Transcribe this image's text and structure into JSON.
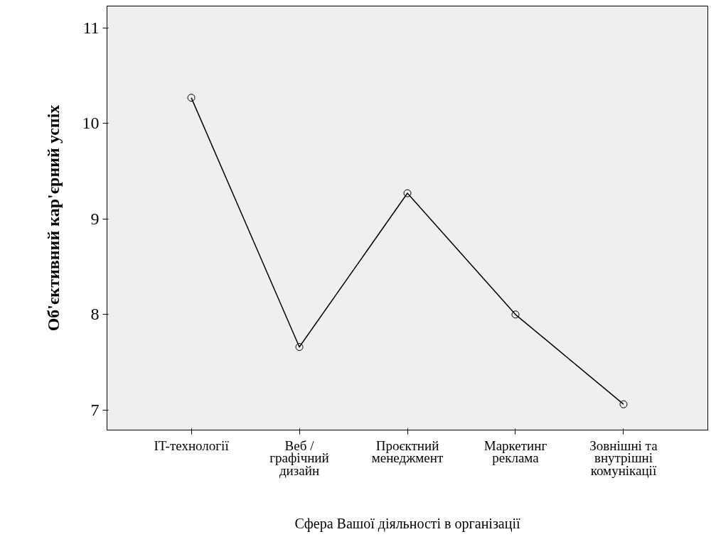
{
  "chart_data": {
    "type": "line",
    "xlabel": "Сфера Вашої діяльності в організації",
    "ylabel": "Об'єктивний кар'єрний успіх",
    "categories": [
      "IT-технології",
      "Веб /\nграфічний\nдизайн",
      "Проєктний\nменеджмент",
      "Маркетинг\nреклама",
      "Зовнішні та\nвнутрішні\nкомунікації"
    ],
    "values": [
      10.27,
      7.66,
      9.27,
      8.0,
      7.06
    ],
    "color": "#000000",
    "marker": "circle",
    "line_style": "solid",
    "ylim": [
      6.79,
      11.23
    ],
    "yticks": [
      7,
      8,
      9,
      10,
      11
    ],
    "grid": false
  }
}
